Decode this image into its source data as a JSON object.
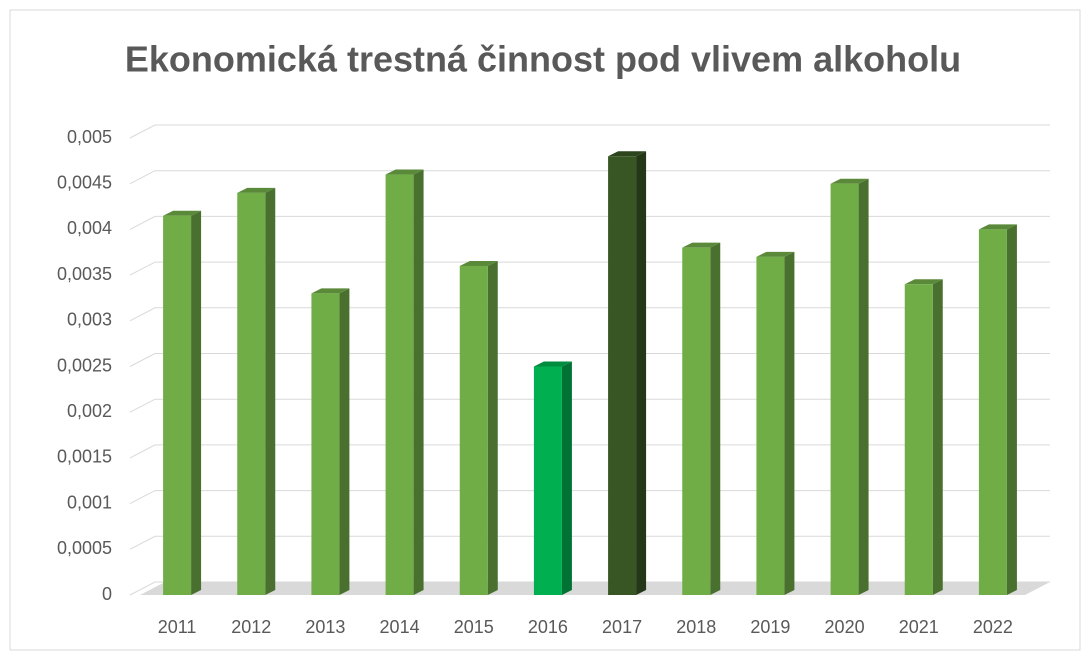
{
  "chart_data": {
    "type": "bar3d",
    "title": "Ekonomická trestná činnost pod vlivem alkoholu",
    "categories": [
      "2011",
      "2012",
      "2013",
      "2014",
      "2015",
      "2016",
      "2017",
      "2018",
      "2019",
      "2020",
      "2021",
      "2022"
    ],
    "values": [
      0.00415,
      0.0044,
      0.0033,
      0.0046,
      0.0036,
      0.0025,
      0.0048,
      0.0038,
      0.0037,
      0.0045,
      0.0034,
      0.004
    ],
    "colors": [
      "#70ad47",
      "#70ad47",
      "#70ad47",
      "#70ad47",
      "#70ad47",
      "#00b050",
      "#375623",
      "#70ad47",
      "#70ad47",
      "#70ad47",
      "#70ad47",
      "#70ad47"
    ],
    "ylim": [
      0,
      0.005
    ],
    "yticks": [
      0,
      {
        "value": 0.0005,
        "label": "0,0005"
      },
      {
        "value": 0.001,
        "label": "0,001"
      },
      {
        "value": 0.0015,
        "label": "0,0015"
      },
      {
        "value": 0.002,
        "label": "0,002"
      },
      {
        "value": 0.0025,
        "label": "0,0025"
      },
      {
        "value": 0.003,
        "label": "0,003"
      },
      {
        "value": 0.0035,
        "label": "0,0035"
      },
      {
        "value": 0.004,
        "label": "0,004"
      },
      {
        "value": 0.0045,
        "label": "0,0045"
      },
      {
        "value": 0.005,
        "label": "0,005"
      }
    ],
    "grid": true
  }
}
